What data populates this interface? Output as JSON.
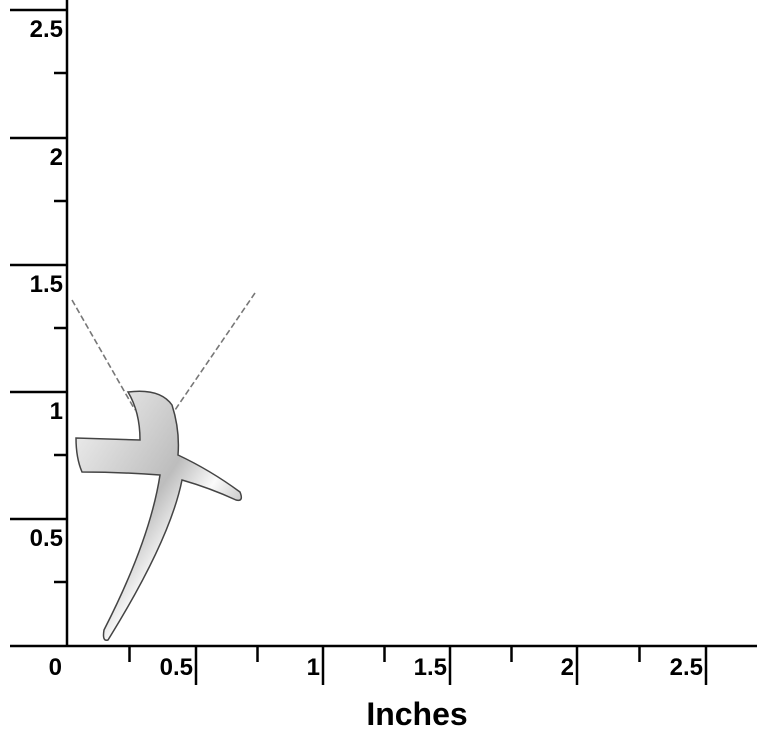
{
  "ruler": {
    "x_axis": {
      "label": "Inches",
      "ticks": [
        "0",
        "0.5",
        "1",
        "1.5",
        "2",
        "2.5"
      ]
    },
    "y_axis": {
      "ticks": [
        "0.5",
        "1",
        "1.5",
        "2",
        "2.5"
      ]
    }
  }
}
